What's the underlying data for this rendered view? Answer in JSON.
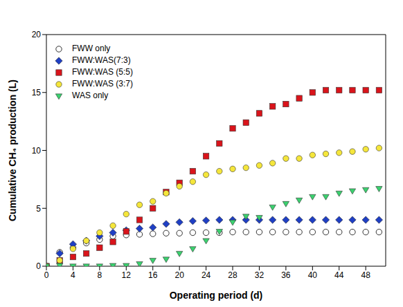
{
  "chart_data": {
    "type": "scatter",
    "x_label": "Operating period (d)",
    "y_label": "Cumulative CH₄ production (L)",
    "x": [
      0,
      2,
      4,
      6,
      8,
      10,
      12,
      14,
      16,
      18,
      20,
      22,
      24,
      26,
      28,
      30,
      32,
      34,
      36,
      38,
      40,
      42,
      44,
      46,
      48,
      50
    ],
    "xlim": [
      0,
      51
    ],
    "xticks": [
      0,
      4,
      8,
      12,
      16,
      20,
      24,
      28,
      32,
      36,
      40,
      44,
      48
    ],
    "ylim": [
      0,
      20
    ],
    "yticks": [
      0,
      5,
      10,
      15,
      20
    ],
    "grid": false,
    "legend": "upper left",
    "series": [
      {
        "name": "FWW only",
        "color": "#000000",
        "marker": "open_circle",
        "values": [
          0,
          1.2,
          1.6,
          2.0,
          2.3,
          2.6,
          2.7,
          2.75,
          2.8,
          2.85,
          2.85,
          2.9,
          2.9,
          2.9,
          2.95,
          2.95,
          2.95,
          2.95,
          2.95,
          2.95,
          2.95,
          2.95,
          2.95,
          2.95,
          2.95,
          2.95
        ]
      },
      {
        "name": "FWW:WAS(7:3)",
        "color": "#1f3fc4",
        "marker": "diamond",
        "values": [
          0,
          1.1,
          1.9,
          2.2,
          2.6,
          2.9,
          3.1,
          3.25,
          3.35,
          3.65,
          3.8,
          3.9,
          3.95,
          4.0,
          4.0,
          4.0,
          4.0,
          4.0,
          4.0,
          4.0,
          4.0,
          4.0,
          4.0,
          4.0,
          4.0,
          4.0
        ]
      },
      {
        "name": "FWW:WAS (5:5)",
        "color": "#d9141b",
        "marker": "square",
        "values": [
          0,
          0.5,
          0.8,
          1.1,
          1.6,
          2.1,
          3.0,
          4.0,
          5.0,
          6.4,
          7.2,
          8.2,
          9.5,
          10.6,
          11.9,
          12.4,
          13.2,
          13.8,
          14.0,
          14.5,
          15.0,
          15.2,
          15.2,
          15.2,
          15.2,
          15.2
        ]
      },
      {
        "name": "FWW:WAS (3:7)",
        "color": "#f5e63b",
        "marker": "circle",
        "values": [
          0,
          0.5,
          1.5,
          2.2,
          2.9,
          3.5,
          4.5,
          5.3,
          5.6,
          6.3,
          6.9,
          7.3,
          7.9,
          8.2,
          8.4,
          8.5,
          8.7,
          8.9,
          9.3,
          9.3,
          9.6,
          9.7,
          9.8,
          9.9,
          10.1,
          10.2
        ]
      },
      {
        "name": "WAS only",
        "color": "#3bd16f",
        "marker": "triangle_down",
        "values": [
          0,
          0.05,
          0,
          0,
          0,
          0.05,
          0.05,
          0.2,
          0.5,
          0.6,
          1.1,
          1.5,
          2.2,
          3.0,
          3.8,
          4.3,
          4.2,
          5.1,
          5.4,
          5.7,
          6.0,
          6.0,
          6.3,
          6.5,
          6.6,
          6.7
        ]
      }
    ]
  }
}
